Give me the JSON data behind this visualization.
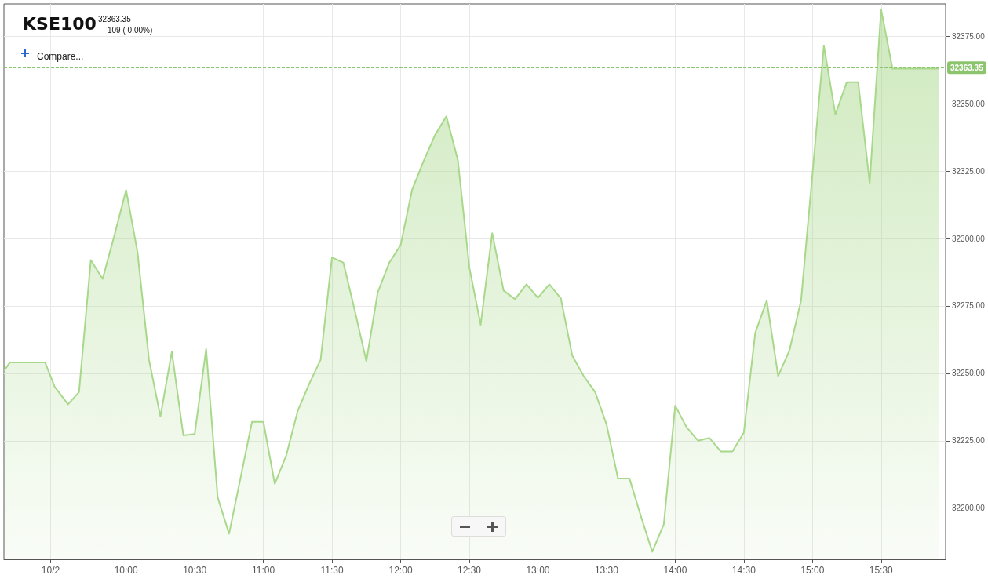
{
  "chart_data": {
    "type": "area",
    "title": "KSE100",
    "subtitle": "32363.35",
    "annotations": [
      "109 ( 0.00%)",
      "Compare..."
    ],
    "x": [
      9.112,
      9.153,
      9.41,
      9.48,
      9.577,
      9.657,
      9.743,
      9.829,
      9.914,
      10,
      10.083,
      10.167,
      10.25,
      10.333,
      10.417,
      10.5,
      10.583,
      10.667,
      10.75,
      10.833,
      10.917,
      11,
      11.083,
      11.167,
      11.25,
      11.333,
      11.417,
      11.5,
      11.583,
      11.667,
      11.75,
      11.833,
      11.917,
      12,
      12.083,
      12.167,
      12.25,
      12.333,
      12.417,
      12.5,
      12.583,
      12.667,
      12.75,
      12.833,
      12.917,
      13,
      13.083,
      13.167,
      13.25,
      13.333,
      13.417,
      13.5,
      13.583,
      13.667,
      13.75,
      13.833,
      13.917,
      14,
      14.083,
      14.167,
      14.25,
      14.333,
      14.417,
      14.5,
      14.583,
      14.667,
      14.75,
      14.833,
      14.917,
      15,
      15.083,
      15.167,
      15.25,
      15.333,
      15.417,
      15.5,
      15.583,
      15.92
    ],
    "series": [
      {
        "color": "#a8d88a",
        "values": [
          32251,
          32254,
          32254,
          32245,
          32238.5,
          32243,
          32292,
          32285,
          32301,
          32318,
          32295,
          32255,
          32234,
          32258,
          32227,
          32227.5,
          32259,
          32204,
          32190.5,
          32211,
          32232,
          32232,
          32209,
          32219.6,
          32236,
          32246,
          32255,
          32293,
          32291,
          32273,
          32254.5,
          32280,
          32291,
          32297.6,
          32318,
          32328.7,
          32338.3,
          32345.3,
          32329,
          32289.4,
          32268,
          32302,
          32280.7,
          32277.5,
          32283,
          32278,
          32283,
          32277.8,
          32256.6,
          32249,
          32243,
          32231,
          32211,
          32211,
          32197,
          32183.8,
          32194,
          32238,
          32230,
          32225,
          32226,
          32221,
          32221,
          32228,
          32265,
          32277,
          32249,
          32258.6,
          32277,
          32324,
          32371.5,
          32346,
          32358,
          32358,
          32320.6,
          32385,
          32363,
          32363
        ]
      }
    ],
    "xlim": [
      9.11,
      15.97
    ],
    "xticks": [
      {
        "value": 9.45,
        "label": "10/2"
      },
      {
        "value": 10,
        "label": "10:00"
      },
      {
        "value": 10.5,
        "label": "10:30"
      },
      {
        "value": 11,
        "label": "11:00"
      },
      {
        "value": 11.5,
        "label": "11:30"
      },
      {
        "value": 12,
        "label": "12:00"
      },
      {
        "value": 12.5,
        "label": "12:30"
      },
      {
        "value": 13,
        "label": "13:00"
      },
      {
        "value": 13.5,
        "label": "13:30"
      },
      {
        "value": 14,
        "label": "14:00"
      },
      {
        "value": 14.5,
        "label": "14:30"
      },
      {
        "value": 15,
        "label": "15:00"
      },
      {
        "value": 15.5,
        "label": "15:30"
      }
    ],
    "ylim": [
      32181,
      32387
    ],
    "yticks": [
      {
        "value": 32200,
        "label": "32200.00"
      },
      {
        "value": 32225,
        "label": "32225.00"
      },
      {
        "value": 32250,
        "label": "32250.00"
      },
      {
        "value": 32275,
        "label": "32275.00"
      },
      {
        "value": 32300,
        "label": "32300.00"
      },
      {
        "value": 32325,
        "label": "32325.00"
      },
      {
        "value": 32350,
        "label": "32350.00"
      },
      {
        "value": 32375,
        "label": "32375.00"
      }
    ],
    "ref_lines": [
      {
        "axis": "y",
        "value": 32363.35,
        "label": "32363.35",
        "color": "#8cc56e",
        "line_style": "dashed"
      }
    ],
    "grid": true,
    "marker": "none",
    "line_style": "solid"
  }
}
